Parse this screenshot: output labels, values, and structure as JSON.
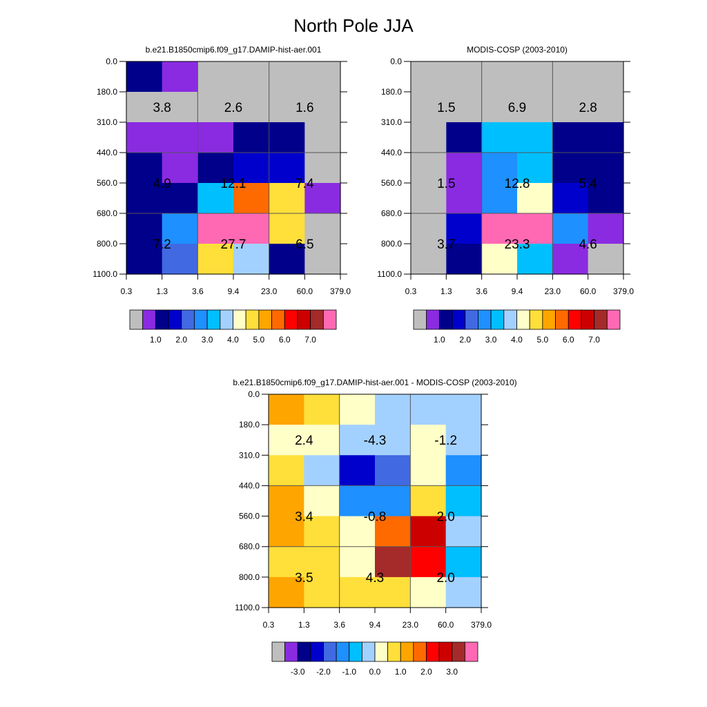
{
  "page": {
    "title": "North Pole JJA"
  },
  "palette": {
    "gray": "#bebebe",
    "purple": "#8a2be2",
    "navy": "#00008b",
    "blue": "#0000cd",
    "royalblue": "#4169e1",
    "dodgerblue": "#1e90ff",
    "deepskyblue": "#00bfff",
    "lightskyblue": "#a3d1ff",
    "lightyellow": "#ffffc8",
    "gold": "#ffdf3a",
    "orange": "#ffa500",
    "darkorange": "#ff6a00",
    "red": "#ff0000",
    "darkred": "#cd0000",
    "brown": "#a52a2a",
    "pink": "#ff69b4"
  },
  "chart_data": [
    {
      "type": "heatmap",
      "title": "b.e21.B1850cmip6.f09_g17.DAMIP-hist-aer.001",
      "x_tick_labels": [
        "0.3",
        "1.3",
        "3.6",
        "9.4",
        "23.0",
        "60.0",
        "379.0"
      ],
      "y_tick_labels": [
        "0.0",
        "180.0",
        "310.0",
        "440.0",
        "560.0",
        "680.0",
        "800.0",
        "1100.0"
      ],
      "cells": [
        [
          "navy",
          "purple",
          "gray",
          "gray",
          "gray",
          "gray"
        ],
        [
          "gray",
          "gray",
          "gray",
          "gray",
          "gray",
          "gray"
        ],
        [
          "purple",
          "purple",
          "purple",
          "navy",
          "navy",
          "gray"
        ],
        [
          "navy",
          "purple",
          "navy",
          "blue",
          "blue",
          "gray"
        ],
        [
          "navy",
          "navy",
          "deepskyblue",
          "darkorange",
          "gold",
          "purple"
        ],
        [
          "navy",
          "dodgerblue",
          "pink",
          "pink",
          "gold",
          "gray"
        ],
        [
          "navy",
          "royalblue",
          "gold",
          "lightskyblue",
          "navy",
          "gray"
        ]
      ],
      "annotations": [
        [
          "3.8",
          "2.6",
          "1.6"
        ],
        [
          "4.9",
          "12.1",
          "7.4"
        ],
        [
          "7.2",
          "27.7",
          "6.5"
        ]
      ],
      "colorbar": {
        "colors": [
          "gray",
          "purple",
          "navy",
          "blue",
          "royalblue",
          "dodgerblue",
          "deepskyblue",
          "lightskyblue",
          "lightyellow",
          "gold",
          "orange",
          "darkorange",
          "red",
          "darkred",
          "brown",
          "pink"
        ],
        "labels": [
          {
            "text": "1.0",
            "boundary": 2
          },
          {
            "text": "2.0",
            "boundary": 4
          },
          {
            "text": "3.0",
            "boundary": 6
          },
          {
            "text": "4.0",
            "boundary": 8
          },
          {
            "text": "5.0",
            "boundary": 10
          },
          {
            "text": "6.0",
            "boundary": 12
          },
          {
            "text": "7.0",
            "boundary": 14
          }
        ]
      }
    },
    {
      "type": "heatmap",
      "title": "MODIS-COSP (2003-2010)",
      "x_tick_labels": [
        "0.3",
        "1.3",
        "3.6",
        "9.4",
        "23.0",
        "60.0",
        "379.0"
      ],
      "y_tick_labels": [
        "0.0",
        "180.0",
        "310.0",
        "440.0",
        "560.0",
        "680.0",
        "800.0",
        "1100.0"
      ],
      "cells": [
        [
          "gray",
          "gray",
          "gray",
          "gray",
          "gray",
          "gray"
        ],
        [
          "gray",
          "gray",
          "gray",
          "gray",
          "gray",
          "gray"
        ],
        [
          "gray",
          "navy",
          "deepskyblue",
          "deepskyblue",
          "navy",
          "navy"
        ],
        [
          "gray",
          "purple",
          "dodgerblue",
          "deepskyblue",
          "navy",
          "navy"
        ],
        [
          "gray",
          "purple",
          "dodgerblue",
          "lightyellow",
          "blue",
          "navy"
        ],
        [
          "gray",
          "blue",
          "pink",
          "pink",
          "dodgerblue",
          "purple"
        ],
        [
          "gray",
          "navy",
          "lightyellow",
          "deepskyblue",
          "purple",
          "gray"
        ]
      ],
      "annotations": [
        [
          "1.5",
          "6.9",
          "2.8"
        ],
        [
          "1.5",
          "12.8",
          "5.4"
        ],
        [
          "3.7",
          "23.3",
          "4.6"
        ]
      ],
      "colorbar": {
        "colors": [
          "gray",
          "purple",
          "navy",
          "blue",
          "royalblue",
          "dodgerblue",
          "deepskyblue",
          "lightskyblue",
          "lightyellow",
          "gold",
          "orange",
          "darkorange",
          "red",
          "darkred",
          "brown",
          "pink"
        ],
        "labels": [
          {
            "text": "1.0",
            "boundary": 2
          },
          {
            "text": "2.0",
            "boundary": 4
          },
          {
            "text": "3.0",
            "boundary": 6
          },
          {
            "text": "4.0",
            "boundary": 8
          },
          {
            "text": "5.0",
            "boundary": 10
          },
          {
            "text": "6.0",
            "boundary": 12
          },
          {
            "text": "7.0",
            "boundary": 14
          }
        ]
      }
    },
    {
      "type": "heatmap",
      "title": "b.e21.B1850cmip6.f09_g17.DAMIP-hist-aer.001 - MODIS-COSP (2003-2010)",
      "x_tick_labels": [
        "0.3",
        "1.3",
        "3.6",
        "9.4",
        "23.0",
        "60.0",
        "379.0"
      ],
      "y_tick_labels": [
        "0.0",
        "180.0",
        "310.0",
        "440.0",
        "560.0",
        "680.0",
        "800.0",
        "1100.0"
      ],
      "cells": [
        [
          "orange",
          "gold",
          "lightyellow",
          "lightskyblue",
          "lightskyblue",
          "lightskyblue"
        ],
        [
          "lightyellow",
          "lightyellow",
          "lightskyblue",
          "lightskyblue",
          "lightyellow",
          "lightskyblue"
        ],
        [
          "gold",
          "lightskyblue",
          "blue",
          "royalblue",
          "lightyellow",
          "dodgerblue"
        ],
        [
          "orange",
          "lightyellow",
          "dodgerblue",
          "dodgerblue",
          "gold",
          "deepskyblue"
        ],
        [
          "orange",
          "gold",
          "lightyellow",
          "darkorange",
          "darkred",
          "lightskyblue"
        ],
        [
          "gold",
          "gold",
          "lightyellow",
          "brown",
          "red",
          "deepskyblue"
        ],
        [
          "orange",
          "gold",
          "gold",
          "gold",
          "lightyellow",
          "lightskyblue"
        ]
      ],
      "annotations": [
        [
          "2.4",
          "-4.3",
          "-1.2"
        ],
        [
          "3.4",
          "-0.8",
          "2.0"
        ],
        [
          "3.5",
          "4.3",
          "2.0"
        ]
      ],
      "colorbar": {
        "colors": [
          "gray",
          "purple",
          "navy",
          "blue",
          "royalblue",
          "dodgerblue",
          "deepskyblue",
          "lightskyblue",
          "lightyellow",
          "gold",
          "orange",
          "darkorange",
          "red",
          "darkred",
          "brown",
          "pink"
        ],
        "labels": [
          {
            "text": "-3.0",
            "boundary": 2
          },
          {
            "text": "-2.0",
            "boundary": 4
          },
          {
            "text": "-1.0",
            "boundary": 6
          },
          {
            "text": "0.0",
            "boundary": 8
          },
          {
            "text": "1.0",
            "boundary": 10
          },
          {
            "text": "2.0",
            "boundary": 12
          },
          {
            "text": "3.0",
            "boundary": 14
          }
        ]
      }
    }
  ]
}
